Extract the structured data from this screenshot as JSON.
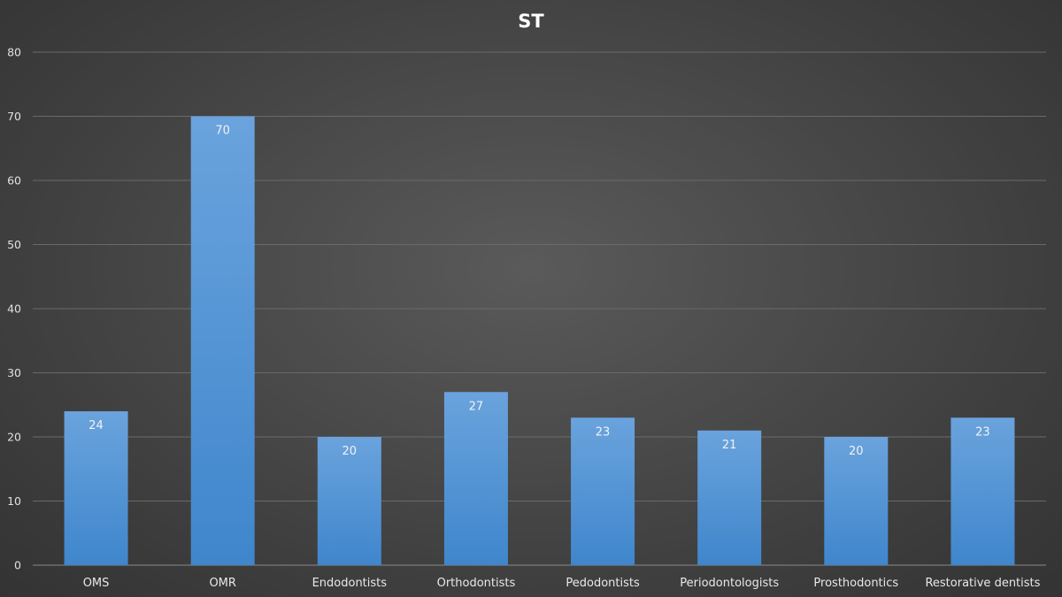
{
  "chart_data": {
    "type": "bar",
    "title": "ST",
    "categories": [
      "OMS",
      "OMR",
      "Endodontists",
      "Orthodontists",
      "Pedodontists",
      "Periodontologists",
      "Prosthodontics",
      "Restorative dentists"
    ],
    "values": [
      24,
      70,
      20,
      27,
      23,
      21,
      20,
      23
    ],
    "ylim": [
      0,
      80
    ],
    "yticks": [
      0,
      10,
      20,
      30,
      40,
      50,
      60,
      70,
      80
    ],
    "grid": true,
    "data_labels": true,
    "colors": {
      "bar_top": "#6aa3dd",
      "bar_bottom": "#3f86cc",
      "background": "#4a4a4a"
    }
  }
}
